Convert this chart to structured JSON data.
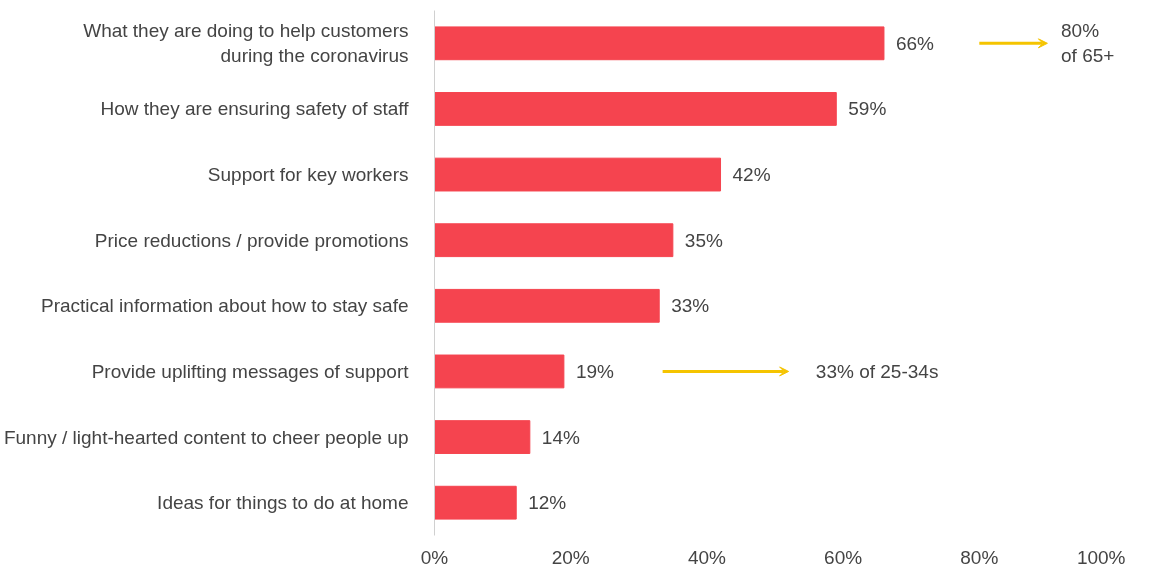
{
  "chart_data": {
    "type": "bar",
    "orientation": "horizontal",
    "categories": [
      "What they are doing to help customers\nduring the coronavirus",
      "How they are ensuring safety of staff",
      "Support for key workers",
      "Price reductions / provide promotions",
      "Practical information about how to stay safe",
      "Provide uplifting messages of support",
      "Funny / light-hearted content to cheer people up",
      "Ideas for things to do at home"
    ],
    "values": [
      66,
      59,
      42,
      35,
      33,
      19,
      14,
      12
    ],
    "value_labels": [
      "66%",
      "59%",
      "42%",
      "35%",
      "33%",
      "19%",
      "14%",
      "12%"
    ],
    "color": "#f5444f",
    "xlim": [
      0,
      100
    ],
    "xticks": [
      {
        "value": 0,
        "label": "0%"
      },
      {
        "value": 20,
        "label": "20%"
      },
      {
        "value": 40,
        "label": "40%"
      },
      {
        "value": 60,
        "label": "60%"
      },
      {
        "value": 80,
        "label": "80%"
      },
      {
        "value": 100,
        "label": "100%"
      }
    ],
    "grid": false,
    "annotations": [
      "80%\nof 65+",
      "33% of 25-34s"
    ]
  }
}
